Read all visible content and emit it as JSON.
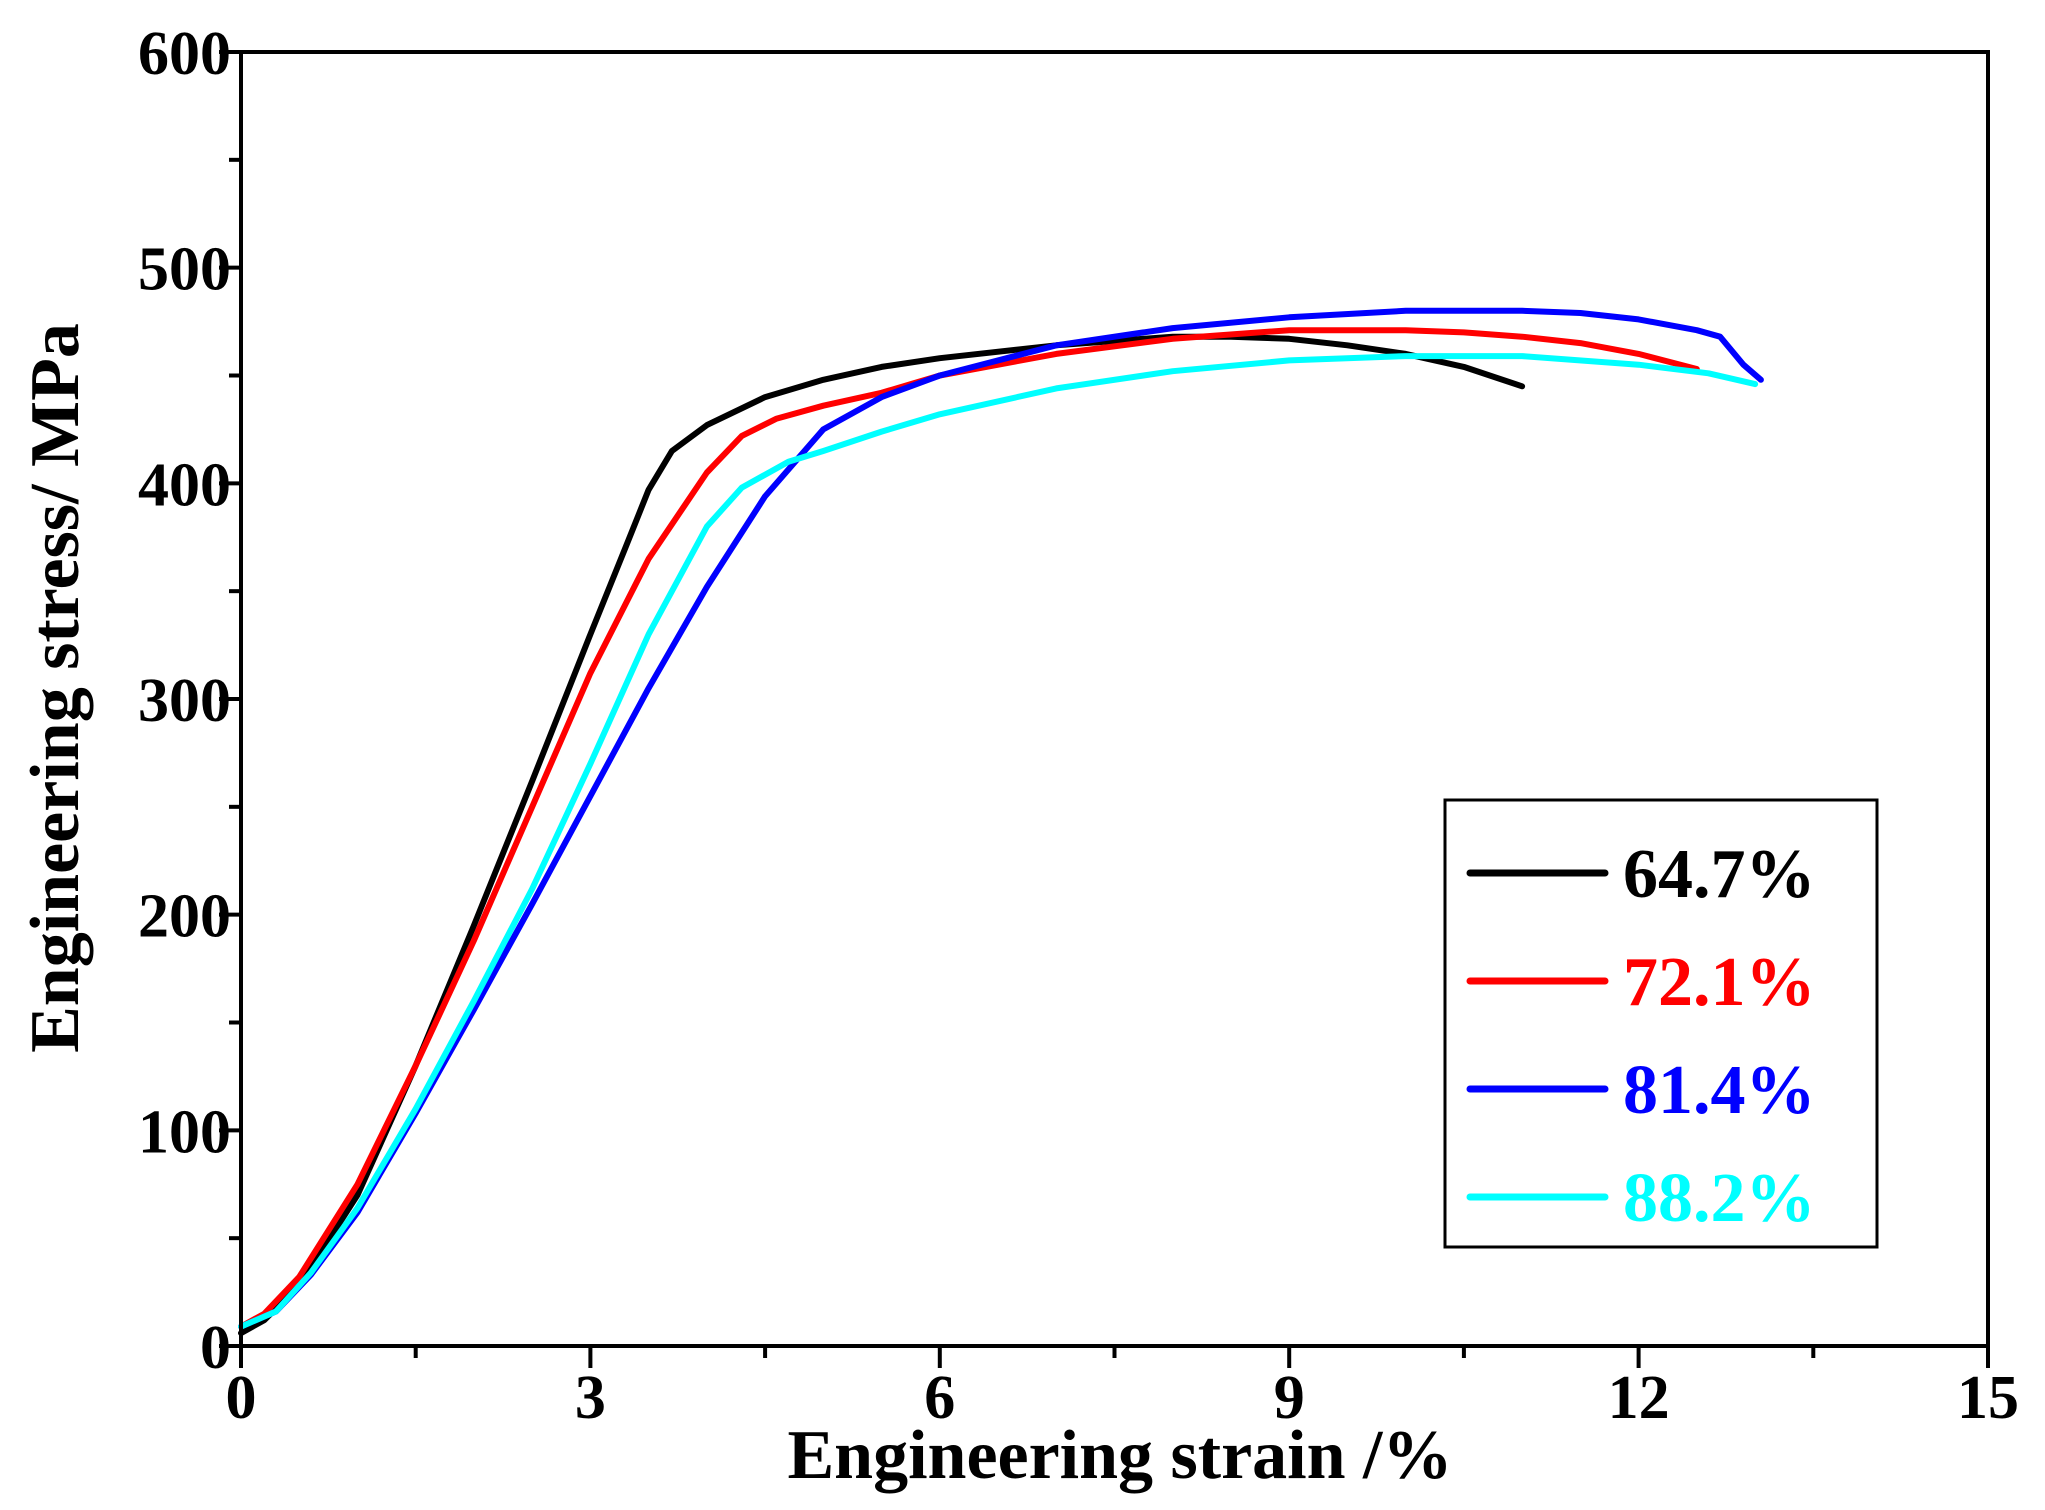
{
  "chart_data": {
    "type": "line",
    "xlabel": "Engineering strain /%",
    "ylabel": "Engineering stress/ MPa",
    "xlim": [
      0,
      15
    ],
    "ylim": [
      0,
      600
    ],
    "xticks": [
      0,
      3,
      6,
      9,
      12,
      15
    ],
    "yticks": [
      0,
      100,
      200,
      300,
      400,
      500,
      600
    ],
    "x_minor_step": 1.5,
    "y_minor_step": 50,
    "grid": false,
    "legend_position": "bottom-right",
    "series": [
      {
        "name": "64.7%",
        "color": "#000000",
        "points": [
          [
            0,
            6
          ],
          [
            0.2,
            12
          ],
          [
            0.5,
            28
          ],
          [
            1.0,
            70
          ],
          [
            1.5,
            130
          ],
          [
            2.0,
            195
          ],
          [
            2.5,
            262
          ],
          [
            3.0,
            330
          ],
          [
            3.3,
            370
          ],
          [
            3.5,
            397
          ],
          [
            3.7,
            415
          ],
          [
            4.0,
            427
          ],
          [
            4.5,
            440
          ],
          [
            5.0,
            448
          ],
          [
            5.5,
            454
          ],
          [
            6.0,
            458
          ],
          [
            7.0,
            464
          ],
          [
            8.0,
            468
          ],
          [
            8.5,
            468
          ],
          [
            9.0,
            467
          ],
          [
            9.5,
            464
          ],
          [
            10.0,
            460
          ],
          [
            10.5,
            454
          ],
          [
            11.0,
            445
          ]
        ]
      },
      {
        "name": "72.1%",
        "color": "#ff0000",
        "points": [
          [
            0,
            9
          ],
          [
            0.2,
            15
          ],
          [
            0.5,
            32
          ],
          [
            1.0,
            75
          ],
          [
            1.5,
            130
          ],
          [
            2.0,
            188
          ],
          [
            2.5,
            250
          ],
          [
            3.0,
            312
          ],
          [
            3.5,
            365
          ],
          [
            4.0,
            405
          ],
          [
            4.3,
            422
          ],
          [
            4.6,
            430
          ],
          [
            5.0,
            436
          ],
          [
            5.5,
            442
          ],
          [
            6.0,
            450
          ],
          [
            7.0,
            460
          ],
          [
            8.0,
            467
          ],
          [
            9.0,
            471
          ],
          [
            10.0,
            471
          ],
          [
            10.5,
            470
          ],
          [
            11.0,
            468
          ],
          [
            11.5,
            465
          ],
          [
            12.0,
            460
          ],
          [
            12.5,
            453
          ]
        ]
      },
      {
        "name": "81.4%",
        "color": "#0000ff",
        "points": [
          [
            0,
            9
          ],
          [
            0.3,
            16
          ],
          [
            0.6,
            33
          ],
          [
            1.0,
            62
          ],
          [
            1.5,
            108
          ],
          [
            2.0,
            156
          ],
          [
            2.5,
            205
          ],
          [
            3.0,
            255
          ],
          [
            3.5,
            305
          ],
          [
            4.0,
            352
          ],
          [
            4.5,
            394
          ],
          [
            5.0,
            425
          ],
          [
            5.5,
            440
          ],
          [
            6.0,
            450
          ],
          [
            7.0,
            464
          ],
          [
            8.0,
            472
          ],
          [
            9.0,
            477
          ],
          [
            10.0,
            480
          ],
          [
            11.0,
            480
          ],
          [
            11.5,
            479
          ],
          [
            12.0,
            476
          ],
          [
            12.5,
            471
          ],
          [
            12.7,
            468
          ],
          [
            12.9,
            455
          ],
          [
            13.05,
            448
          ]
        ]
      },
      {
        "name": "88.2%",
        "color": "#00ffff",
        "points": [
          [
            0,
            9
          ],
          [
            0.3,
            16
          ],
          [
            0.6,
            34
          ],
          [
            1.0,
            64
          ],
          [
            1.5,
            110
          ],
          [
            2.0,
            160
          ],
          [
            2.5,
            212
          ],
          [
            3.0,
            270
          ],
          [
            3.5,
            330
          ],
          [
            4.0,
            380
          ],
          [
            4.3,
            398
          ],
          [
            4.7,
            410
          ],
          [
            5.0,
            415
          ],
          [
            5.5,
            424
          ],
          [
            6.0,
            432
          ],
          [
            7.0,
            444
          ],
          [
            8.0,
            452
          ],
          [
            9.0,
            457
          ],
          [
            10.0,
            459
          ],
          [
            11.0,
            459
          ],
          [
            12.0,
            455
          ],
          [
            12.6,
            451
          ],
          [
            13.0,
            446
          ]
        ]
      }
    ]
  }
}
